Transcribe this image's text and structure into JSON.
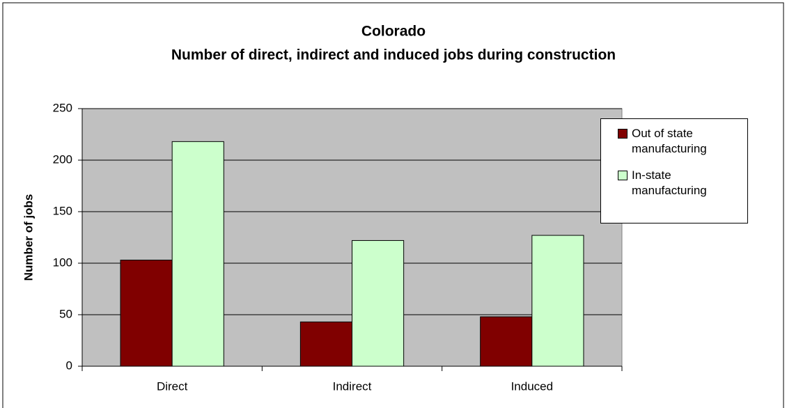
{
  "chart_data": {
    "type": "bar",
    "title": [
      "Colorado",
      "Number of direct, indirect and induced jobs during construction"
    ],
    "y_label": "Number of jobs",
    "categories": [
      "Direct",
      "Indirect",
      "Induced"
    ],
    "series": [
      {
        "name": "Out of state manufacturing",
        "color": "#800000",
        "values": [
          103,
          43,
          48
        ]
      },
      {
        "name": "In-state manufacturing",
        "color": "#ccffcc",
        "values": [
          218,
          122,
          127
        ]
      }
    ],
    "ylim": [
      0,
      250
    ],
    "yticks": [
      0,
      50,
      100,
      150,
      200,
      250
    ],
    "grid": true,
    "legend": "right"
  }
}
